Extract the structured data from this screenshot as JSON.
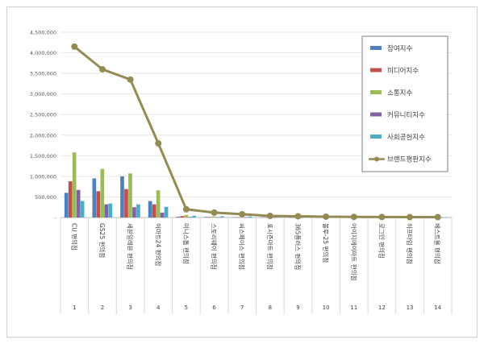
{
  "chart_data": {
    "type": "bar",
    "title": "",
    "xlabel": "",
    "ylabel": "",
    "ylim": [
      0,
      4500000
    ],
    "yticks": [
      "4,500,000",
      "4,000,000",
      "3,500,000",
      "3,000,000",
      "2,500,000",
      "2,000,000",
      "1,500,000",
      "1,000,000",
      "500,000",
      "-"
    ],
    "grid": true,
    "legend_position": "right",
    "categories": [
      "CU 편의점",
      "GS25 편의점",
      "세븐일레븐 편의점",
      "이마트24 편의점",
      "미니스톱 편의점",
      "스토리웨이 편의점",
      "씨스페이스 편의점",
      "포시즌마트 편의점",
      "365플러스 편의점",
      "볼루-25 편의점",
      "아이지에이마트 편의점",
      "로그인 편의점",
      "하프타임 편의점",
      "베스트올 편의점"
    ],
    "ranks": [
      "1",
      "2",
      "3",
      "4",
      "5",
      "6",
      "7",
      "8",
      "9",
      "10",
      "11",
      "12",
      "13",
      "14"
    ],
    "series": [
      {
        "name": "참여지수",
        "color": "#4f81bd",
        "kind": "bar",
        "values": [
          600000,
          950000,
          1000000,
          400000,
          20000,
          15000,
          8000,
          6000,
          5000,
          3000,
          3000,
          2000,
          2000,
          2000
        ]
      },
      {
        "name": "미디어지수",
        "color": "#c0504d",
        "kind": "bar",
        "values": [
          880000,
          640000,
          690000,
          320000,
          35000,
          12000,
          6000,
          5000,
          4000,
          2000,
          2000,
          2000,
          1000,
          1000
        ]
      },
      {
        "name": "소통지수",
        "color": "#9bbb59",
        "kind": "bar",
        "values": [
          1580000,
          1180000,
          1070000,
          660000,
          60000,
          25000,
          12000,
          8000,
          6000,
          4000,
          3000,
          3000,
          2000,
          2000
        ]
      },
      {
        "name": "커뮤니티지수",
        "color": "#8064a2",
        "kind": "bar",
        "values": [
          670000,
          320000,
          250000,
          120000,
          15000,
          8000,
          4000,
          3000,
          2000,
          1000,
          1000,
          1000,
          1000,
          1000
        ]
      },
      {
        "name": "사회공헌지수",
        "color": "#4bacc6",
        "kind": "bar",
        "values": [
          400000,
          340000,
          320000,
          260000,
          40000,
          30000,
          25000,
          20000,
          15000,
          10000,
          8000,
          6000,
          5000,
          5000
        ]
      },
      {
        "name": "브랜드평판지수",
        "color": "#948a54",
        "kind": "line",
        "values": [
          4150000,
          3600000,
          3350000,
          1800000,
          200000,
          120000,
          80000,
          40000,
          30000,
          20000,
          15000,
          12000,
          10000,
          10000
        ]
      }
    ]
  }
}
